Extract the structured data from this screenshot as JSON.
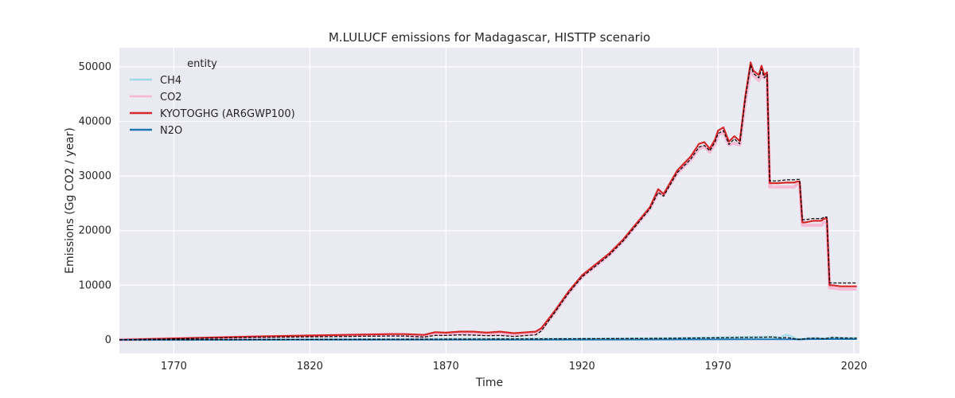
{
  "chart_data": {
    "type": "line",
    "title": "M.LULUCF emissions for Madagascar, HISTTP scenario",
    "xlabel": "Time",
    "ylabel": "Emissions (Gg CO2 / year)",
    "xlim": [
      1750,
      2022
    ],
    "ylim": [
      -2500,
      53500
    ],
    "xticks": [
      1770,
      1820,
      1870,
      1920,
      1970,
      2020
    ],
    "yticks": [
      0,
      10000,
      20000,
      30000,
      40000,
      50000
    ],
    "grid": true,
    "legend": {
      "title": "entity",
      "placement": "top-left"
    },
    "series": [
      {
        "name": "CH4",
        "color": "#9edae5",
        "x": [
          1750,
          1800,
          1850,
          1900,
          1950,
          1985,
          1990,
          1993,
          1995,
          1997,
          1999,
          2000,
          2003,
          2006,
          2009,
          2012,
          2015,
          2018,
          2021
        ],
        "values": [
          0,
          50,
          100,
          150,
          250,
          500,
          550,
          400,
          900,
          600,
          100,
          50,
          250,
          300,
          200,
          400,
          350,
          300,
          300
        ]
      },
      {
        "name": "CO2",
        "color": "#f7b6d2",
        "x": [
          1750,
          1800,
          1850,
          1855,
          1862,
          1866,
          1870,
          1875,
          1880,
          1885,
          1890,
          1895,
          1900,
          1903,
          1905,
          1910,
          1915,
          1920,
          1925,
          1930,
          1935,
          1940,
          1945,
          1948,
          1950,
          1955,
          1960,
          1963,
          1965,
          1967,
          1969,
          1970,
          1972,
          1974,
          1976,
          1978,
          1980,
          1982,
          1983,
          1985,
          1986,
          1987,
          1988,
          1989,
          1992,
          1995,
          1998,
          1999,
          2000,
          2001,
          2002,
          2005,
          2008,
          2009,
          2010,
          2011,
          2012,
          2015,
          2018,
          2021
        ],
        "values": [
          0,
          500,
          950,
          800,
          600,
          1100,
          1000,
          1200,
          1200,
          1000,
          1200,
          900,
          1100,
          1200,
          1800,
          5000,
          8500,
          11500,
          13500,
          15500,
          18000,
          21000,
          24000,
          27000,
          26500,
          30500,
          33000,
          35000,
          35400,
          34400,
          36000,
          37500,
          38000,
          35700,
          36000,
          35700,
          43500,
          49500,
          48500,
          47500,
          48500,
          48000,
          48500,
          28000,
          28000,
          28000,
          28000,
          28500,
          28500,
          21000,
          21000,
          21000,
          21000,
          21500,
          21500,
          9500,
          9500,
          9300,
          9300,
          9300
        ]
      },
      {
        "name": "KYOTOGHG (AR6GWP100)",
        "color": "#d62728",
        "x": [
          1750,
          1800,
          1850,
          1855,
          1862,
          1866,
          1870,
          1875,
          1880,
          1885,
          1890,
          1895,
          1900,
          1903,
          1905,
          1910,
          1915,
          1920,
          1925,
          1930,
          1935,
          1940,
          1945,
          1948,
          1950,
          1955,
          1960,
          1963,
          1965,
          1967,
          1969,
          1970,
          1972,
          1974,
          1976,
          1978,
          1980,
          1982,
          1983,
          1985,
          1986,
          1987,
          1988,
          1989,
          1992,
          1995,
          1998,
          1999,
          2000,
          2001,
          2002,
          2005,
          2008,
          2009,
          2010,
          2011,
          2012,
          2015,
          2018,
          2021
        ],
        "values": [
          0,
          600,
          1050,
          1050,
          900,
          1400,
          1300,
          1500,
          1500,
          1300,
          1500,
          1200,
          1400,
          1500,
          2100,
          5300,
          8800,
          11800,
          13800,
          15800,
          18300,
          21300,
          24300,
          27600,
          26700,
          31000,
          33600,
          35900,
          36200,
          35000,
          36800,
          38300,
          38900,
          36300,
          37300,
          36400,
          44500,
          50800,
          49300,
          48500,
          50200,
          48500,
          49000,
          28700,
          28700,
          28800,
          28800,
          29000,
          29000,
          21500,
          21500,
          21800,
          21800,
          22200,
          22200,
          10000,
          10000,
          9800,
          9800,
          9800
        ]
      },
      {
        "name": "N2O",
        "color": "#1f77b4",
        "x": [
          1750,
          1850,
          1900,
          1950,
          1985,
          1990,
          1995,
          2000,
          2010,
          2021
        ],
        "values": [
          0,
          20,
          30,
          50,
          80,
          90,
          100,
          100,
          120,
          120
        ]
      },
      {
        "name": "",
        "color": "#000000",
        "dashed": true,
        "x": [
          1750,
          1800,
          1850,
          1855,
          1862,
          1866,
          1870,
          1875,
          1880,
          1885,
          1890,
          1895,
          1900,
          1903,
          1905,
          1910,
          1915,
          1920,
          1925,
          1930,
          1935,
          1940,
          1945,
          1948,
          1950,
          1955,
          1960,
          1963,
          1965,
          1967,
          1969,
          1970,
          1972,
          1974,
          1976,
          1978,
          1980,
          1982,
          1983,
          1985,
          1986,
          1987,
          1988,
          1989,
          1992,
          1995,
          1998,
          1999,
          2000,
          2001,
          2002,
          2005,
          2008,
          2009,
          2010,
          2011,
          2012,
          2015,
          2018,
          2021
        ],
        "values": [
          0,
          450,
          700,
          700,
          500,
          800,
          800,
          900,
          850,
          750,
          800,
          600,
          800,
          900,
          1600,
          5000,
          8500,
          11500,
          13500,
          15500,
          18000,
          21000,
          24000,
          27000,
          26300,
          30600,
          33100,
          35300,
          35600,
          34600,
          36300,
          37800,
          38300,
          35800,
          36800,
          35900,
          44000,
          50300,
          48800,
          48000,
          49600,
          48000,
          48600,
          29100,
          29100,
          29300,
          29300,
          29400,
          29400,
          22000,
          22000,
          22200,
          22200,
          22500,
          22500,
          10400,
          10400,
          10400,
          10400,
          10400
        ]
      },
      {
        "name": "",
        "color": "#000000",
        "dashed": true,
        "x": [
          1750,
          1850,
          1900,
          1950,
          1985,
          1990,
          1993,
          1995,
          1997,
          1999,
          2000,
          2003,
          2006,
          2009,
          2012,
          2015,
          2018,
          2021
        ],
        "values": [
          0,
          100,
          150,
          250,
          450,
          500,
          350,
          400,
          300,
          100,
          50,
          250,
          300,
          200,
          400,
          350,
          300,
          300
        ]
      }
    ]
  }
}
